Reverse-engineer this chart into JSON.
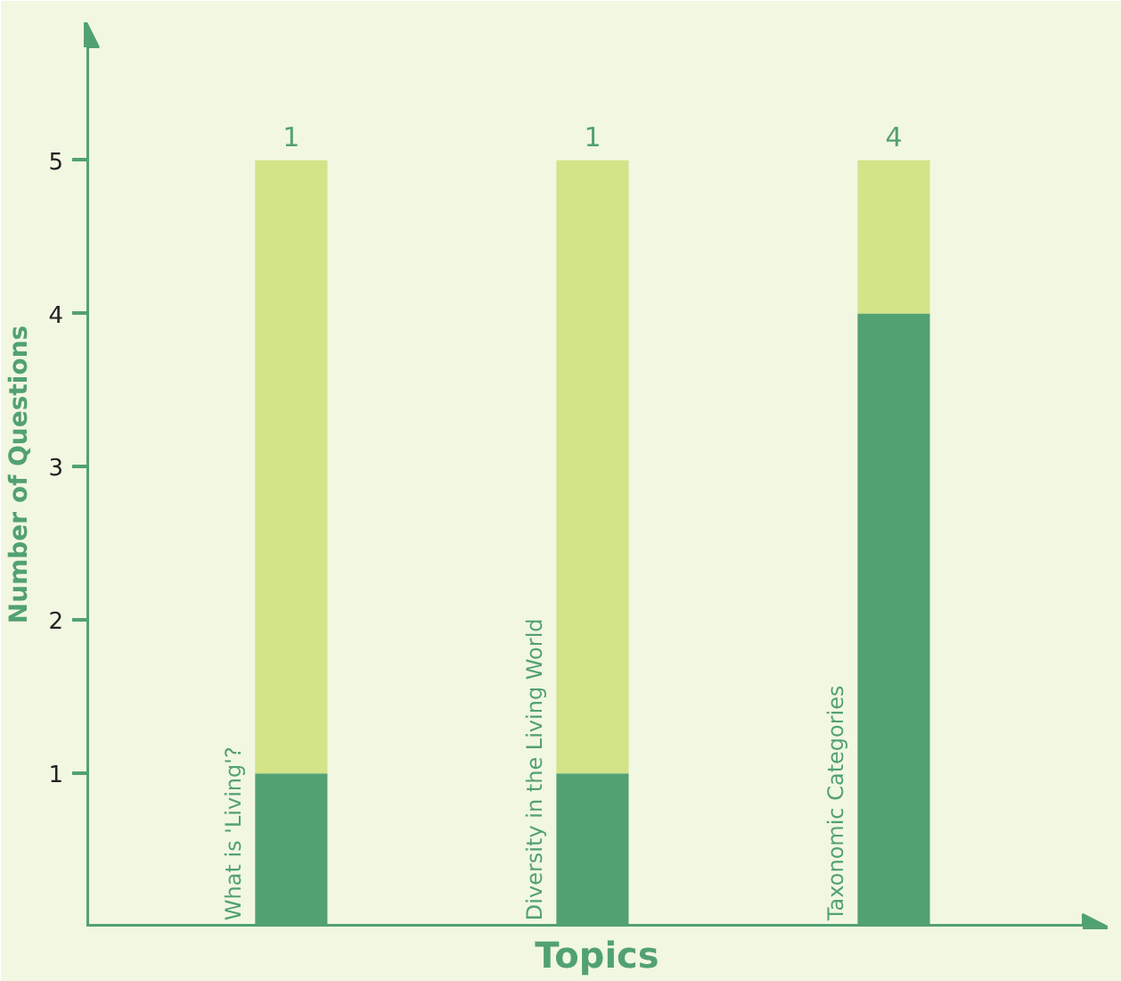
{
  "chart_data": {
    "type": "bar",
    "stacked": true,
    "xlabel": "Topics",
    "ylabel": "Number of Questions",
    "categories": [
      "What is 'Living'?",
      "Diversity in the Living World",
      "Taxonomic Categories"
    ],
    "series": [
      {
        "color": "#52a173",
        "values": [
          1,
          1,
          4
        ]
      },
      {
        "color": "#d3e388",
        "values": [
          4,
          4,
          1
        ]
      }
    ],
    "annotations": [
      "1",
      "1",
      "4"
    ],
    "ylim": [
      0,
      5.9
    ],
    "yticks": [
      1,
      2,
      3,
      4,
      5
    ],
    "grid": false
  }
}
